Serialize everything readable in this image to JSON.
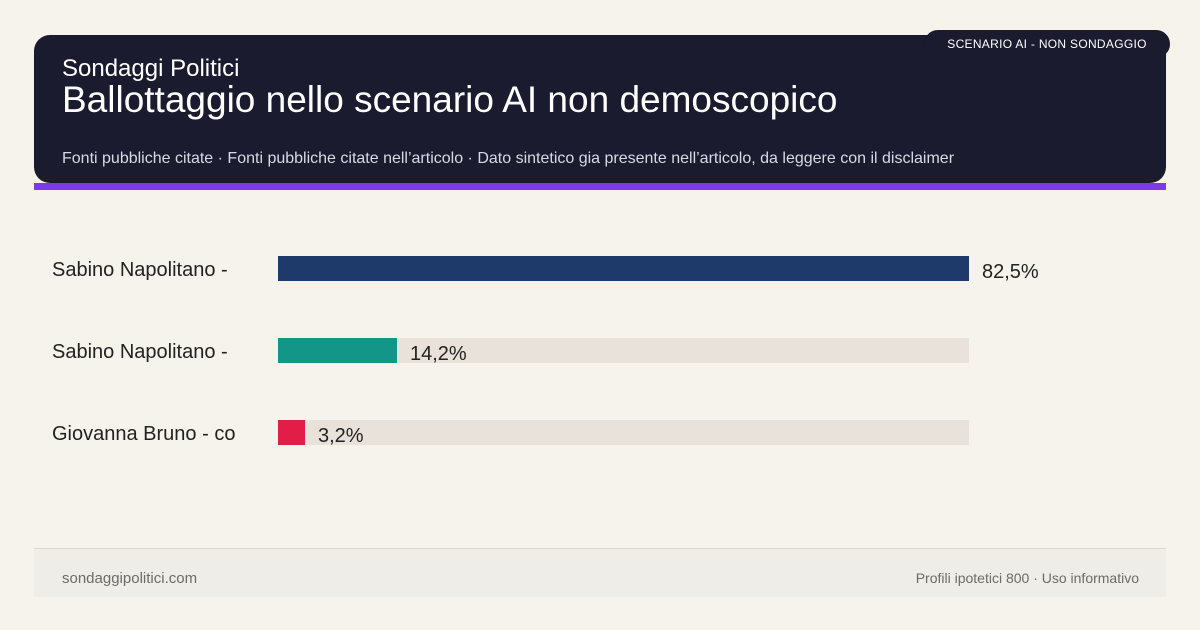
{
  "header": {
    "brand": "Sondaggi Politici",
    "title": "Ballottaggio nello scenario AI non demoscopico",
    "sources": "Fonti pubbliche citate · Fonti pubbliche citate nell’articolo · Dato sintetico gia presente nell’articolo, da leggere con il disclaimer",
    "badge": "SCENARIO AI - NON SONDAGGIO"
  },
  "colors": {
    "header_bg": "#1b1b2f",
    "accent": "#7c3aed",
    "track": "#e8e2db",
    "bar_1": "#1e3a6b",
    "bar_2": "#129687",
    "bar_3": "#e11d48"
  },
  "chart_data": {
    "type": "bar",
    "orientation": "horizontal",
    "categories": [
      "Sabino Napolitano -",
      "Sabino Napolitano -",
      "Giovanna Bruno - co"
    ],
    "values": [
      82.5,
      14.2,
      3.2
    ],
    "value_labels": [
      "82,5%",
      "14,2%",
      "3,2%"
    ],
    "bar_colors": [
      "#1e3a6b",
      "#129687",
      "#e11d48"
    ],
    "xlim": [
      0,
      82.5
    ],
    "grid": false,
    "legend": "none"
  },
  "footer": {
    "site": "sondaggipolitici.com",
    "note": "Profili ipotetici 800 · Uso informativo"
  }
}
